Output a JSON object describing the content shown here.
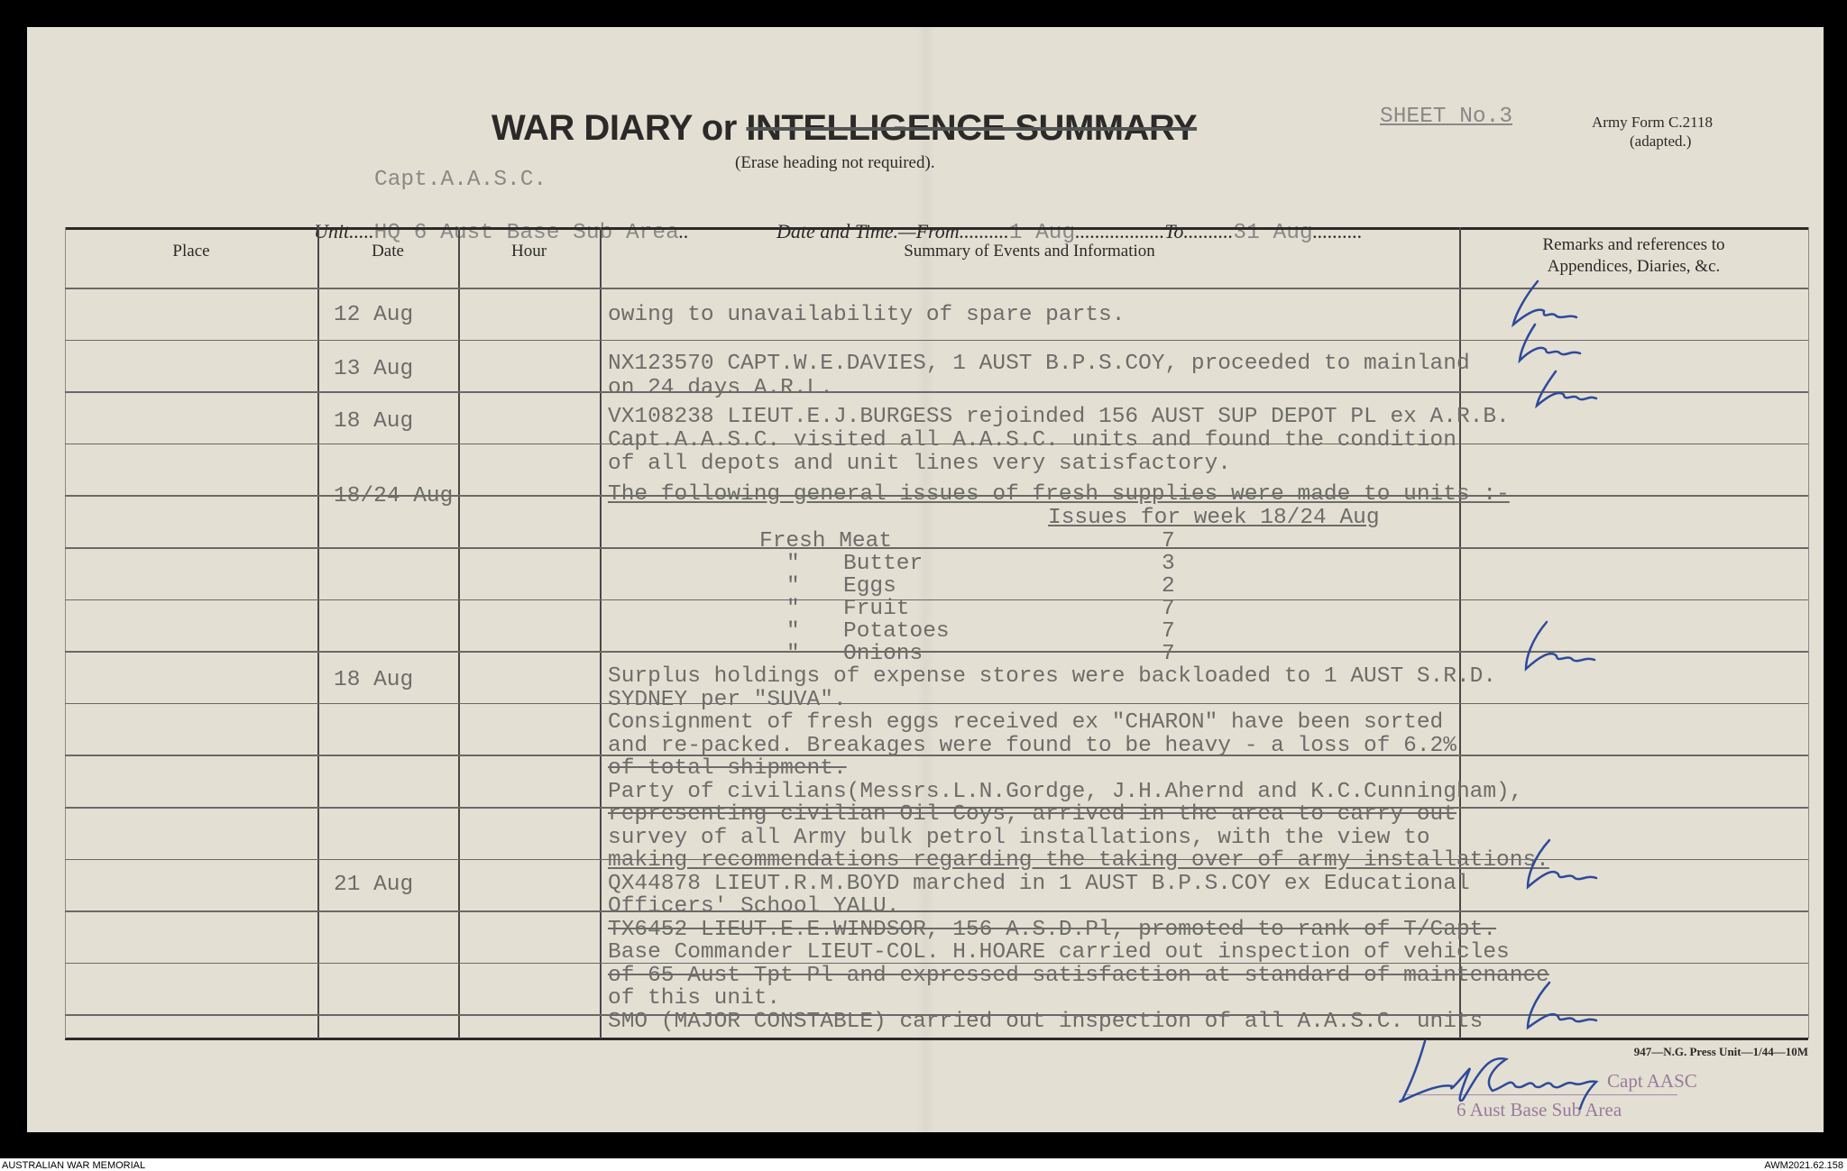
{
  "header": {
    "title_kept": "WAR DIARY or",
    "title_erased": "INTELLIGENCE SUMMARY",
    "erase_note": "(Erase heading not required).",
    "sheet": "SHEET No.3",
    "form": "Army Form C.2118",
    "form_note": "(adapted.)",
    "officer": "Capt.A.A.S.C.",
    "unit_label": "Unit",
    "unit_value": "HQ 6 Aust Base Sub Area",
    "date_label": "Date and Time.—From",
    "date_from": "1 Aug",
    "to_label": "To",
    "date_to": "31 Aug"
  },
  "columns": [
    "Place",
    "Date",
    "Hour",
    "Summary of Events and Information",
    "Remarks and references to",
    "Appendices, Diaries, &c."
  ],
  "dates": [
    "12 Aug",
    "13 Aug",
    "18 Aug",
    "18/24 Aug",
    "18 Aug",
    "21 Aug"
  ],
  "summary_lines": [
    "owing to unavailability of spare parts.",
    "NX123570 CAPT.W.E.DAVIES, 1 AUST B.P.S.COY, proceeded to mainland",
    "on 24 days A.R.L.",
    "VX108238 LIEUT.E.J.BURGESS rejoinded 156 AUST SUP DEPOT PL ex A.R.B.",
    "Capt.A.A.S.C. visited all A.A.S.C. units and found the condition",
    "of all depots and unit lines very satisfactory.",
    "The following general issues of fresh supplies were made to units :-",
    "Surplus holdings of expense stores were backloaded to 1 AUST S.R.D.",
    "SYDNEY per \"SUVA\".",
    "Consignment of fresh eggs received ex \"CHARON\" have been sorted",
    "and re-packed. Breakages were found to be heavy - a loss of 6.2%",
    "of total shipment.",
    "Party of civilians(Messrs.L.N.Gordge, J.H.Ahernd and K.C.Cunningham),",
    "representing civilian Oil Coys, arrived in the area to carry out",
    "survey of all Army bulk petrol installations, with the view to",
    "making recommendations regarding the taking over of army installations.",
    "QX44878 LIEUT.R.M.BOYD marched in 1 AUST B.P.S.COY ex Educational",
    "Officers' School YALU.",
    "TX6452 LIEUT.E.E.WINDSOR, 156 A.S.D.Pl, promoted to rank of T/Capt.",
    "Base Commander LIEUT-COL. H.HOARE carried out inspection of vehicles",
    "of 65 Aust Tpt Pl and expressed satisfaction at standard of maintenance",
    "of this unit.",
    "SMO (MAJOR CONSTABLE) carried out inspection of all A.A.S.C. units"
  ],
  "issues": {
    "heading": "Issues for week 18/24 Aug",
    "items": [
      {
        "ditto": "",
        "name": "Fresh Meat",
        "qty": "7"
      },
      {
        "ditto": "\"",
        "name": "Butter",
        "qty": "3"
      },
      {
        "ditto": "\"",
        "name": "Eggs",
        "qty": "2"
      },
      {
        "ditto": "\"",
        "name": "Fruit",
        "qty": "7"
      },
      {
        "ditto": "\"",
        "name": "Potatoes",
        "qty": "7"
      },
      {
        "ditto": "\"",
        "name": "Onions",
        "qty": "7"
      }
    ]
  },
  "footer": {
    "printer": "947—N.G. Press Unit—1/44—10M",
    "stamp_rank": "Capt AASC",
    "stamp_unit": "6 Aust Base Sub Area"
  },
  "captions": {
    "left": "AUSTRALIAN WAR MEMORIAL",
    "right": "AWM2021.62.158"
  },
  "colors": {
    "paper": "#e3dfd3",
    "typewriter": "#6d6c68",
    "ink": "#2e4a9a",
    "stamp": "#9a7a9c"
  }
}
